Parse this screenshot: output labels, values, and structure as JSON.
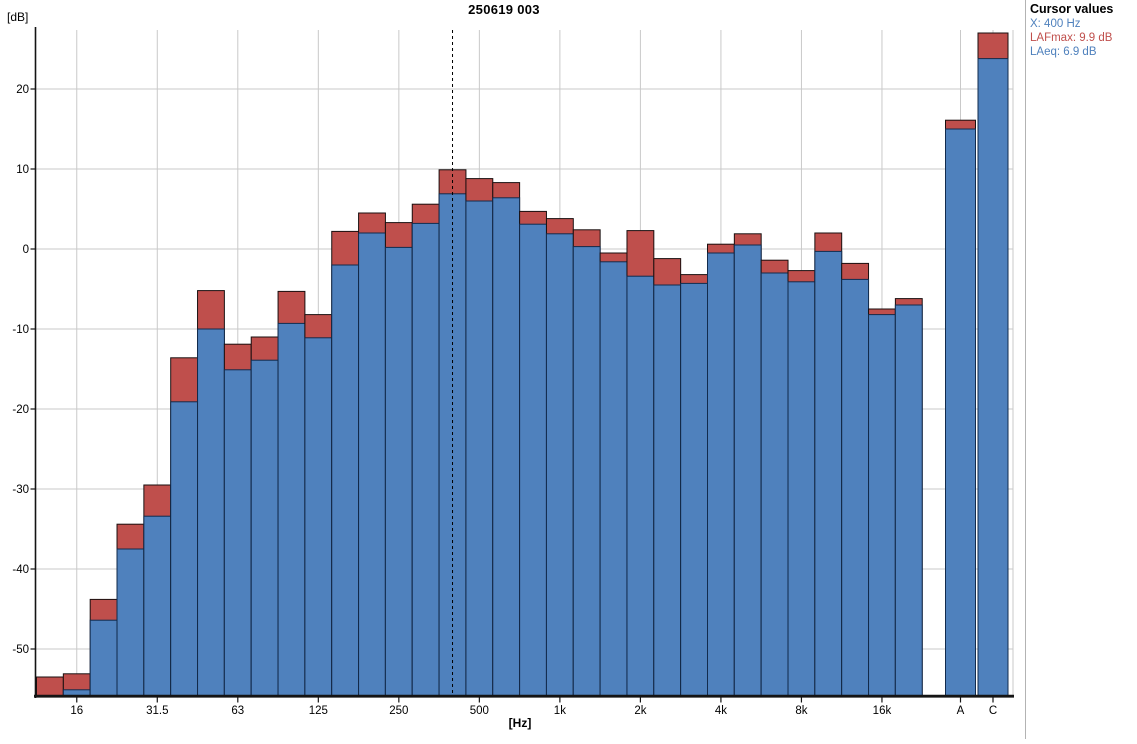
{
  "window": {
    "background": "#ffffff"
  },
  "title": "250619 003",
  "y_axis": {
    "label": "[dB]",
    "ticks": [
      20,
      10,
      0,
      -10,
      -20,
      -30,
      -40,
      -50
    ],
    "min": -55.75,
    "max": 27.75
  },
  "x_axis": {
    "label": "[Hz]",
    "major_ticks": [
      "16",
      "31.5",
      "63",
      "125",
      "250",
      "500",
      "1k",
      "2k",
      "4k",
      "8k",
      "16k",
      "A",
      "C"
    ]
  },
  "cursor_panel": {
    "title": "Cursor values",
    "lines": [
      {
        "text": "X: 400 Hz",
        "color": "#4f81bd"
      },
      {
        "text": "LAFmax: 9.9 dB",
        "color": "#c0504d"
      },
      {
        "text": "LAeq: 6.9 dB",
        "color": "#4f81bd"
      }
    ]
  },
  "colors": {
    "lafmax_fill": "#bf4f4c",
    "lafmax_stroke": "#1a0f0f",
    "laeq_fill": "#4f81bd",
    "laeq_stroke": "#122b4d",
    "gridline": "#c9c9c9",
    "axis": "#141414",
    "cursor_line": "#000000",
    "panel_border": "#b3b3b3"
  },
  "chart_data": {
    "type": "bar",
    "title": "250619 003",
    "xlabel": "[Hz]",
    "ylabel": "[dB]",
    "ylim": [
      -55.75,
      27.75
    ],
    "grid": true,
    "y_ticks": [
      20,
      10,
      0,
      -10,
      -20,
      -30,
      -40,
      -50
    ],
    "x_major_ticks": [
      "16",
      "31.5",
      "63",
      "125",
      "250",
      "500",
      "1k",
      "2k",
      "4k",
      "8k",
      "16k",
      "A",
      "C"
    ],
    "categories": [
      "12.5",
      "16",
      "20",
      "25",
      "31.5",
      "40",
      "50",
      "63",
      "80",
      "100",
      "125",
      "160",
      "200",
      "250",
      "315",
      "400",
      "500",
      "630",
      "800",
      "1k",
      "1.25k",
      "1.6k",
      "2k",
      "2.5k",
      "3.15k",
      "4k",
      "5k",
      "6.3k",
      "8k",
      "10k",
      "12.5k",
      "16k",
      "20k",
      "A",
      "C"
    ],
    "series": [
      {
        "name": "LAFmax",
        "color": "#bf4f4c",
        "values": [
          -53.5,
          -53.1,
          -43.8,
          -34.4,
          -29.5,
          -13.6,
          -5.2,
          -11.9,
          -11.0,
          -5.3,
          -8.2,
          2.2,
          4.5,
          3.3,
          5.6,
          9.9,
          8.8,
          8.3,
          4.7,
          3.8,
          2.4,
          -0.5,
          2.3,
          -1.2,
          -3.2,
          0.6,
          1.9,
          -1.4,
          -2.7,
          2.0,
          -1.8,
          -7.5,
          -6.2,
          16.1,
          27.0
        ]
      },
      {
        "name": "LAeq",
        "color": "#4f81bd",
        "values": [
          -55.8,
          -55.1,
          -46.4,
          -37.5,
          -33.4,
          -19.1,
          -10.0,
          -15.1,
          -13.9,
          -9.3,
          -11.1,
          -2.0,
          2.0,
          0.2,
          3.2,
          6.9,
          6.0,
          6.4,
          3.1,
          1.9,
          0.3,
          -1.6,
          -3.4,
          -4.5,
          -4.3,
          -0.5,
          0.5,
          -3.0,
          -4.1,
          -0.3,
          -3.8,
          -8.2,
          -7.0,
          15.0,
          23.8
        ]
      }
    ],
    "cursor": {
      "x": "400",
      "LAFmax_dB": 9.9,
      "LAeq_dB": 6.9
    }
  }
}
